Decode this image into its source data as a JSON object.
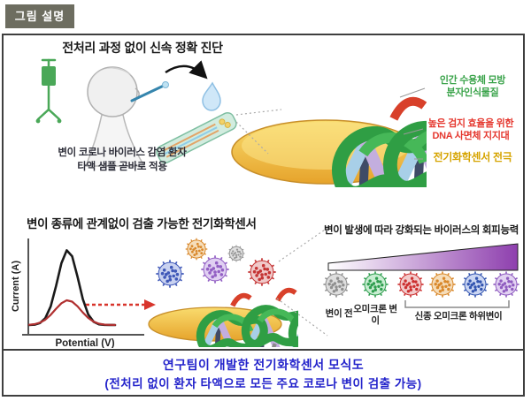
{
  "badge": {
    "label": "그림 설명",
    "bg": "#6d6d60",
    "text_color": "#ffffff"
  },
  "top_section": {
    "title": "전처리 과정 없이 신속 정확 진단",
    "patient_caption": {
      "line1": "변이 코로나 바이러스 감염 환자",
      "line2": "타액 샘플 곧바로 적용"
    },
    "labels": {
      "receptor": {
        "line1": "인간 수용체 모방",
        "line2": "분자인식물질",
        "color": "#3aa34a"
      },
      "dna_support": {
        "line1": "높은 검지 효율을 위한",
        "line2": "DNA 사면체 지지대",
        "color": "#e5372e"
      },
      "electrode": {
        "text": "전기화학센서 전극",
        "color": "#d6a400"
      }
    }
  },
  "bottom_section": {
    "title": "변이 종류에 관계없이 검출 가능한 전기화학센서",
    "evasion_label": "변이 발생에 따라 강화되는 바이러스의 회피능력",
    "wedge": {
      "start": "#ffffff",
      "end": "#8e3fae"
    },
    "variant_row": [
      {
        "name": "pre-variant",
        "label": "변이 전",
        "color": "#8f8f8f",
        "light": "#dedede"
      },
      {
        "name": "omicron",
        "label": "오미크론 변이",
        "color": "#2f9e4f",
        "light": "#c9edd2"
      },
      {
        "name": "subvariant-1",
        "label": "",
        "color": "#cc3030",
        "light": "#f2cbcb"
      },
      {
        "name": "subvariant-2",
        "label": "",
        "color": "#d9882b",
        "light": "#f5ddba"
      },
      {
        "name": "subvariant-3",
        "label": "",
        "color": "#3355b0",
        "light": "#cbd6f2"
      },
      {
        "name": "subvariant-4",
        "label": "",
        "color": "#8f5cc0",
        "light": "#e2d2f2"
      }
    ],
    "bracket_label": "신종 오미크론 하위변이"
  },
  "sensor_art": {
    "bound_viruses": {
      "blue": {
        "color": "#3f58b8",
        "light": "#c9d2f0"
      },
      "purple": {
        "color": "#9360c4",
        "light": "#e0d0f2"
      },
      "red": {
        "color": "#c43434",
        "light": "#f0c9c9"
      }
    },
    "floating_viruses": {
      "orange": {
        "color": "#d9882b",
        "light": "#f5ddba"
      },
      "gray": {
        "color": "#949494",
        "light": "#e0e0e0"
      }
    }
  },
  "chart_data": {
    "type": "line",
    "title": "",
    "xlabel": "Potential (V)",
    "ylabel": "Current (A)",
    "x_range": [
      0,
      1
    ],
    "y_range": [
      0,
      1
    ],
    "axes_ticks": "none",
    "x": [
      0,
      0.0625,
      0.125,
      0.1875,
      0.25,
      0.3125,
      0.375,
      0.4375,
      0.5,
      0.5625,
      0.625,
      0.6875,
      0.75,
      0.8125,
      0.875,
      0.9375,
      1
    ],
    "series": [
      {
        "name": "signal-curve-high",
        "color": "#1a1a1a",
        "width": 2.6,
        "values": [
          0.001,
          0.005,
          0.026,
          0.092,
          0.249,
          0.519,
          0.823,
          0.995,
          0.917,
          0.644,
          0.345,
          0.141,
          0.044,
          0.01,
          0.002,
          0.001,
          0
        ]
      },
      {
        "name": "signal-curve-low",
        "color": "#b03030",
        "width": 2.2,
        "values": [
          0.004,
          0.012,
          0.032,
          0.071,
          0.136,
          0.217,
          0.291,
          0.329,
          0.312,
          0.249,
          0.167,
          0.094,
          0.045,
          0.018,
          0.006,
          0.002,
          0.001
        ]
      }
    ]
  },
  "caption": {
    "line1": "연구팀이 개발한 전기화학센서 모식도",
    "line2": "(전처리 없이 환자 타액으로 모든 주요 코로나 변이 검출 가능)",
    "color": "#2323cb"
  }
}
